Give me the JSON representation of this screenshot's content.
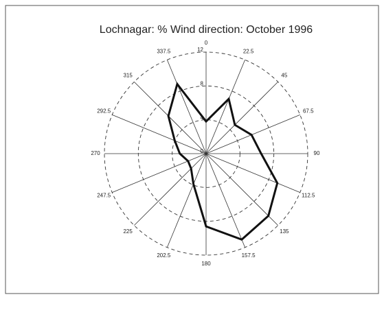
{
  "chart_data": {
    "type": "radar",
    "title": "Lochnagar: % Wind direction: October 1996",
    "categories": [
      "0",
      "22.5",
      "45",
      "67.5",
      "90",
      "112.5",
      "135",
      "157.5",
      "180",
      "202.5",
      "225",
      "247.5",
      "270",
      "292.5",
      "315",
      "337.5"
    ],
    "values": [
      3.8,
      7.0,
      4.8,
      5.8,
      6.5,
      9.1,
      10.4,
      11.0,
      8.6,
      3.9,
      2.5,
      2.3,
      3.1,
      4.0,
      6.3,
      8.9
    ],
    "color": "#111111",
    "ylim": [
      0,
      12
    ],
    "yticks": [
      0,
      4,
      8,
      12
    ],
    "grid": true
  }
}
